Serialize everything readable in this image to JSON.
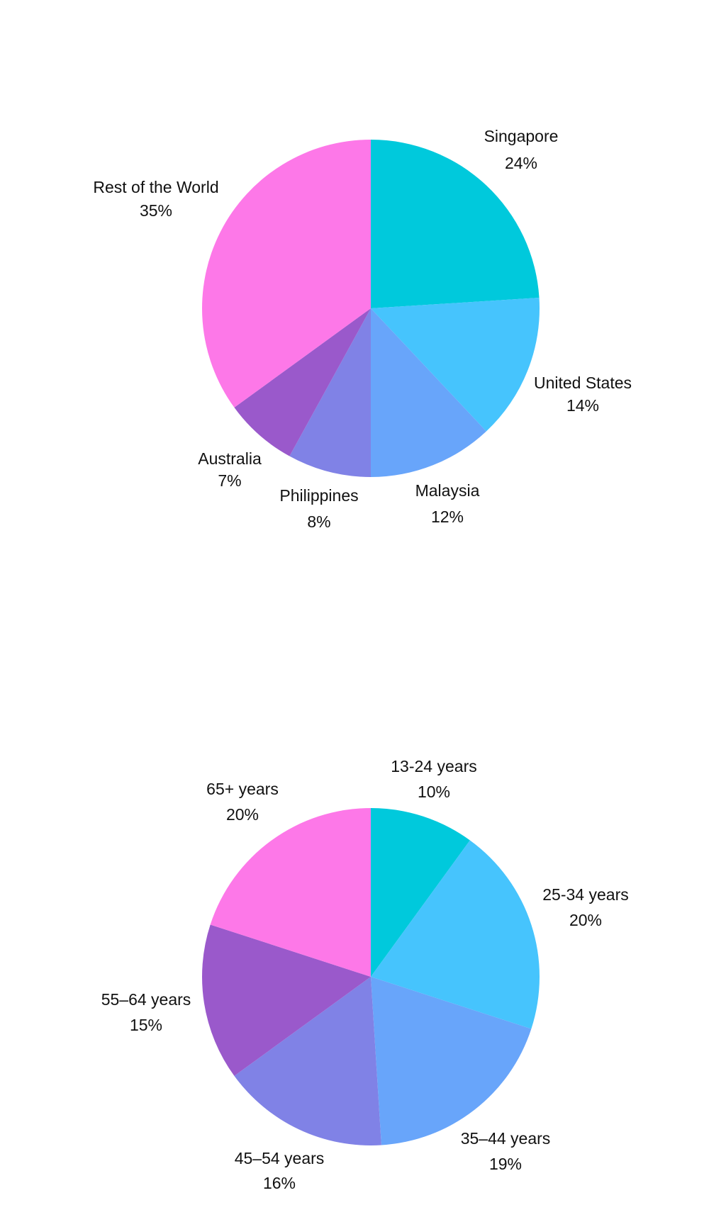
{
  "chart_data": [
    {
      "type": "pie",
      "title": "",
      "start_angle_deg": 0,
      "direction": "clockwise",
      "slices": [
        {
          "label": "Singapore",
          "value": 24,
          "value_label": "24%",
          "color": "#00C9DC"
        },
        {
          "label": "United States",
          "value": 14,
          "value_label": "14%",
          "color": "#46C4FD"
        },
        {
          "label": "Malaysia",
          "value": 12,
          "value_label": "12%",
          "color": "#68A5FA"
        },
        {
          "label": "Philippines",
          "value": 8,
          "value_label": "8%",
          "color": "#8082E6"
        },
        {
          "label": "Australia",
          "value": 7,
          "value_label": "7%",
          "color": "#9A59CB"
        },
        {
          "label": "Rest of the World",
          "value": 35,
          "value_label": "35%",
          "color": "#FD78E8"
        }
      ]
    },
    {
      "type": "pie",
      "title": "",
      "start_angle_deg": 0,
      "direction": "clockwise",
      "slices": [
        {
          "label": "13-24 years",
          "value": 10,
          "value_label": "10%",
          "color": "#00C9DC"
        },
        {
          "label": "25-34 years",
          "value": 20,
          "value_label": "20%",
          "color": "#46C4FD"
        },
        {
          "label": "35–44 years",
          "value": 19,
          "value_label": "19%",
          "color": "#68A5FA"
        },
        {
          "label": "45–54 years",
          "value": 16,
          "value_label": "16%",
          "color": "#8082E6"
        },
        {
          "label": "55–64 years",
          "value": 15,
          "value_label": "15%",
          "color": "#9A59CB"
        },
        {
          "label": "65+ years",
          "value": 20,
          "value_label": "20%",
          "color": "#FD78E8"
        }
      ]
    }
  ]
}
